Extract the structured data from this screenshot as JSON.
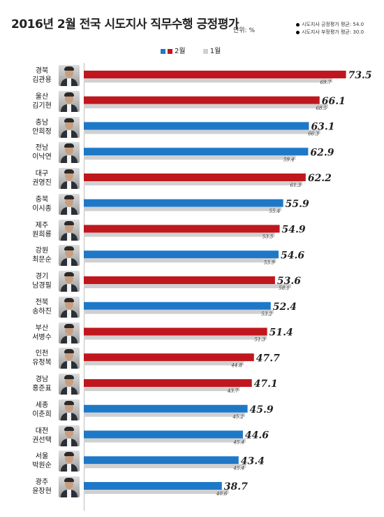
{
  "header": {
    "title": "2016년 2월 전국 시도지사 직무수행 긍정평가",
    "unit": "단위: %",
    "avg_positive": "시도지사 긍정평가 평균: 54.0",
    "avg_negative": "시도지사 부정평가 평균: 30.0"
  },
  "colors": {
    "red": "#c0171e",
    "blue": "#1e78c8",
    "gray": "#d0d0d0"
  },
  "chart_data": {
    "type": "bar",
    "orientation": "horizontal",
    "title": "2016년 2월 전국 시도지사 직무수행 긍정평가",
    "unit": "단위: %",
    "legend": [
      "2월",
      "1월"
    ],
    "categories": [
      {
        "region": "경북",
        "name": "김관용"
      },
      {
        "region": "울산",
        "name": "김기현"
      },
      {
        "region": "충남",
        "name": "안희정"
      },
      {
        "region": "전남",
        "name": "이낙연"
      },
      {
        "region": "대구",
        "name": "권영진"
      },
      {
        "region": "충북",
        "name": "이시종"
      },
      {
        "region": "제주",
        "name": "원희룡"
      },
      {
        "region": "강원",
        "name": "최문순"
      },
      {
        "region": "경기",
        "name": "남경필"
      },
      {
        "region": "전북",
        "name": "송하진"
      },
      {
        "region": "부산",
        "name": "서병수"
      },
      {
        "region": "인천",
        "name": "유정복"
      },
      {
        "region": "경남",
        "name": "홍준표"
      },
      {
        "region": "세종",
        "name": "이춘희"
      },
      {
        "region": "대전",
        "name": "권선택"
      },
      {
        "region": "서울",
        "name": "박원순"
      },
      {
        "region": "광주",
        "name": "윤장현"
      }
    ],
    "series": [
      {
        "name": "2월",
        "values": [
          73.5,
          66.1,
          63.1,
          62.9,
          62.2,
          55.9,
          54.9,
          54.6,
          53.6,
          52.4,
          51.4,
          47.7,
          47.1,
          45.9,
          44.6,
          43.4,
          38.7
        ],
        "colors": [
          "red",
          "red",
          "blue",
          "blue",
          "red",
          "blue",
          "red",
          "blue",
          "red",
          "blue",
          "red",
          "red",
          "red",
          "blue",
          "blue",
          "blue",
          "blue"
        ]
      },
      {
        "name": "1월",
        "values": [
          69.7,
          68.5,
          66.3,
          59.4,
          61.3,
          55.4,
          53.5,
          53.9,
          58.1,
          53.2,
          51.3,
          44.8,
          43.7,
          45.2,
          45.4,
          45.4,
          40.6
        ]
      }
    ],
    "xlim": [
      0,
      80
    ]
  }
}
